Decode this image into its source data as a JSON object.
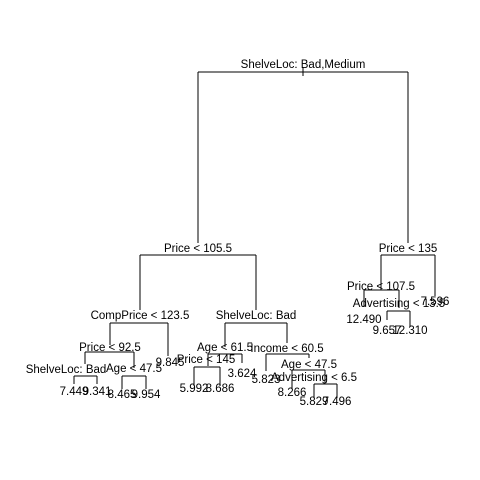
{
  "tree": {
    "splits": {
      "n1": "ShelveLoc: Bad,Medium",
      "n2": "Price < 105.5",
      "n3": "Price < 135",
      "n4": "CompPrice < 123.5",
      "n5": "ShelveLoc: Bad",
      "n6": "Price < 107.5",
      "n7": "Price < 92.5",
      "n8": "Age < 61.5",
      "n9": "Income < 60.5",
      "n10": "Advertising < 13.5",
      "n11": "ShelveLoc: Bad",
      "n12": "Age < 47.5",
      "n13": "Price < 145",
      "n14": "Age < 47.5",
      "n15": "Advertising < 6.5"
    },
    "leaves": {
      "l1": "7.449",
      "l2": "9.341",
      "l3": "8.465",
      "l4": "9.954",
      "l5": "9.845",
      "l6": "5.992",
      "l7": "8.686",
      "l8": "3.624",
      "l9": "5.823",
      "l10": "8.266",
      "l11": "5.829",
      "l12": "7.496",
      "l13": "12.490",
      "l14": "9.657",
      "l15": "12.310",
      "l16": "7.596"
    }
  }
}
